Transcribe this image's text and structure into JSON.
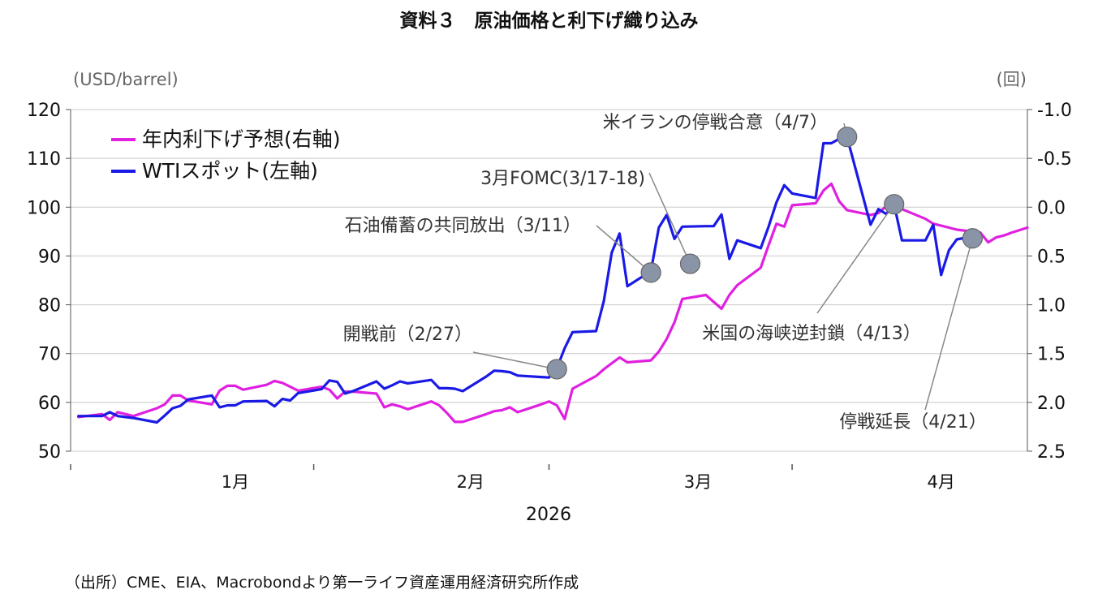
{
  "title": "資料３　原油価格と利下げ織り込み",
  "source": "（出所）CME、EIA、Macrobondより第一ライフ資産運用経済研究所作成",
  "chart_data": {
    "type": "line",
    "title": "資料３　原油価格と利下げ織り込み",
    "left_axis": {
      "unit": "(USD/barrel)",
      "ylim": [
        50,
        120
      ],
      "ticks": [
        120,
        110,
        100,
        90,
        80,
        70,
        60,
        50
      ]
    },
    "right_axis": {
      "unit": "(回)",
      "ylim": [
        -1.0,
        2.5
      ],
      "inverted": true,
      "ticks": [
        "-1.0",
        "-0.5",
        "0.0",
        "0.5",
        "1.0",
        "1.5",
        "2.0",
        "2.5"
      ]
    },
    "x_axis": {
      "xlim": [
        "2025-12-25",
        "2026-04-26"
      ],
      "year": "2026",
      "month_labels": [
        {
          "label": "1月",
          "date": "2026-01-15"
        },
        {
          "label": "2月",
          "date": "2026-02-14"
        },
        {
          "label": "3月",
          "date": "2026-03-15"
        },
        {
          "label": "4月",
          "date": "2026-04-15"
        }
      ],
      "separators": [
        "2025-12-25",
        "2026-01-25",
        "2026-02-24",
        "2026-03-27"
      ]
    },
    "grid": "horizontal",
    "legend": {
      "placement": "top-left",
      "entries": [
        {
          "name": "年内利下げ予想(右軸)",
          "color": "#e020e0"
        },
        {
          "name": "WTIスポット(左軸)",
          "color": "#1a1ae6"
        }
      ]
    },
    "series": [
      {
        "name": "年内利下げ予想(右軸)",
        "axis": "right",
        "color": "#e020e0",
        "points": [
          [
            "2025-12-26",
            2.15
          ],
          [
            "2025-12-29",
            2.12
          ],
          [
            "2025-12-30",
            2.18
          ],
          [
            "2025-12-31",
            2.1
          ],
          [
            "2026-01-02",
            2.14
          ],
          [
            "2026-01-05",
            2.06
          ],
          [
            "2026-01-06",
            2.02
          ],
          [
            "2026-01-07",
            1.93
          ],
          [
            "2026-01-08",
            1.93
          ],
          [
            "2026-01-09",
            1.98
          ],
          [
            "2026-01-12",
            2.02
          ],
          [
            "2026-01-13",
            1.88
          ],
          [
            "2026-01-14",
            1.83
          ],
          [
            "2026-01-15",
            1.83
          ],
          [
            "2026-01-16",
            1.87
          ],
          [
            "2026-01-19",
            1.82
          ],
          [
            "2026-01-20",
            1.78
          ],
          [
            "2026-01-21",
            1.8
          ],
          [
            "2026-01-22",
            1.84
          ],
          [
            "2026-01-23",
            1.88
          ],
          [
            "2026-01-26",
            1.84
          ],
          [
            "2026-01-27",
            1.87
          ],
          [
            "2026-01-28",
            1.96
          ],
          [
            "2026-01-29",
            1.89
          ],
          [
            "2026-01-30",
            1.89
          ],
          [
            "2026-02-02",
            1.91
          ],
          [
            "2026-02-03",
            2.05
          ],
          [
            "2026-02-04",
            2.02
          ],
          [
            "2026-02-05",
            2.04
          ],
          [
            "2026-02-06",
            2.07
          ],
          [
            "2026-02-09",
            1.99
          ],
          [
            "2026-02-10",
            2.03
          ],
          [
            "2026-02-11",
            2.11
          ],
          [
            "2026-02-12",
            2.2
          ],
          [
            "2026-02-13",
            2.2
          ],
          [
            "2026-02-16",
            2.12
          ],
          [
            "2026-02-17",
            2.09
          ],
          [
            "2026-02-18",
            2.08
          ],
          [
            "2026-02-19",
            2.05
          ],
          [
            "2026-02-20",
            2.1
          ],
          [
            "2026-02-23",
            2.02
          ],
          [
            "2026-02-24",
            1.99
          ],
          [
            "2026-02-25",
            2.03
          ],
          [
            "2026-02-26",
            2.17
          ],
          [
            "2026-02-27",
            1.86
          ],
          [
            "2026-03-02",
            1.73
          ],
          [
            "2026-03-03",
            1.66
          ],
          [
            "2026-03-04",
            1.6
          ],
          [
            "2026-03-05",
            1.54
          ],
          [
            "2026-03-06",
            1.59
          ],
          [
            "2026-03-09",
            1.57
          ],
          [
            "2026-03-10",
            1.48
          ],
          [
            "2026-03-11",
            1.35
          ],
          [
            "2026-03-12",
            1.18
          ],
          [
            "2026-03-13",
            0.94
          ],
          [
            "2026-03-16",
            0.9
          ],
          [
            "2026-03-17",
            0.97
          ],
          [
            "2026-03-18",
            1.04
          ],
          [
            "2026-03-19",
            0.9
          ],
          [
            "2026-03-20",
            0.8
          ],
          [
            "2026-03-23",
            0.62
          ],
          [
            "2026-03-24",
            0.39
          ],
          [
            "2026-03-25",
            0.17
          ],
          [
            "2026-03-26",
            0.2
          ],
          [
            "2026-03-27",
            -0.02
          ],
          [
            "2026-03-30",
            -0.04
          ],
          [
            "2026-03-31",
            -0.17
          ],
          [
            "2026-04-01",
            -0.24
          ],
          [
            "2026-04-02",
            -0.06
          ],
          [
            "2026-04-03",
            0.03
          ],
          [
            "2026-04-06",
            0.08
          ],
          [
            "2026-04-07",
            0.06
          ],
          [
            "2026-04-08",
            -0.01
          ],
          [
            "2026-04-09",
            -0.06
          ],
          [
            "2026-04-10",
            0.02
          ],
          [
            "2026-04-13",
            0.12
          ],
          [
            "2026-04-14",
            0.17
          ],
          [
            "2026-04-15",
            0.19
          ],
          [
            "2026-04-16",
            0.21
          ],
          [
            "2026-04-17",
            0.23
          ],
          [
            "2026-04-20",
            0.26
          ],
          [
            "2026-04-21",
            0.36
          ],
          [
            "2026-04-22",
            0.31
          ],
          [
            "2026-04-23",
            0.29
          ],
          [
            "2026-04-24",
            0.26
          ],
          [
            "2026-04-26",
            0.21
          ]
        ]
      },
      {
        "name": "WTIスポット(左軸)",
        "axis": "left",
        "color": "#1a1ae6",
        "points": [
          [
            "2025-12-26",
            57.2
          ],
          [
            "2025-12-29",
            57.2
          ],
          [
            "2025-12-30",
            58.0
          ],
          [
            "2025-12-31",
            57.2
          ],
          [
            "2026-01-02",
            56.8
          ],
          [
            "2026-01-05",
            55.9
          ],
          [
            "2026-01-06",
            57.3
          ],
          [
            "2026-01-07",
            58.8
          ],
          [
            "2026-01-08",
            59.3
          ],
          [
            "2026-01-09",
            60.6
          ],
          [
            "2026-01-12",
            61.4
          ],
          [
            "2026-01-13",
            59.0
          ],
          [
            "2026-01-14",
            59.4
          ],
          [
            "2026-01-15",
            59.4
          ],
          [
            "2026-01-16",
            60.2
          ],
          [
            "2026-01-19",
            60.3
          ],
          [
            "2026-01-20",
            59.2
          ],
          [
            "2026-01-21",
            60.7
          ],
          [
            "2026-01-22",
            60.4
          ],
          [
            "2026-01-23",
            61.9
          ],
          [
            "2026-01-26",
            62.7
          ],
          [
            "2026-01-27",
            64.5
          ],
          [
            "2026-01-28",
            64.2
          ],
          [
            "2026-01-29",
            61.8
          ],
          [
            "2026-01-30",
            62.3
          ],
          [
            "2026-02-02",
            64.3
          ],
          [
            "2026-02-03",
            62.8
          ],
          [
            "2026-02-04",
            63.5
          ],
          [
            "2026-02-05",
            64.3
          ],
          [
            "2026-02-06",
            63.9
          ],
          [
            "2026-02-09",
            64.6
          ],
          [
            "2026-02-10",
            62.9
          ],
          [
            "2026-02-11",
            62.9
          ],
          [
            "2026-02-12",
            62.8
          ],
          [
            "2026-02-13",
            62.3
          ],
          [
            "2026-02-16",
            65.3
          ],
          [
            "2026-02-17",
            66.5
          ],
          [
            "2026-02-18",
            66.4
          ],
          [
            "2026-02-19",
            66.2
          ],
          [
            "2026-02-20",
            65.5
          ],
          [
            "2026-02-23",
            65.2
          ],
          [
            "2026-02-24",
            65.1
          ],
          [
            "2026-02-25",
            67.0
          ],
          [
            "2026-02-26",
            71.1
          ],
          [
            "2026-02-27",
            74.4
          ],
          [
            "2026-03-02",
            74.6
          ],
          [
            "2026-03-03",
            80.8
          ],
          [
            "2026-03-04",
            90.7
          ],
          [
            "2026-03-05",
            94.6
          ],
          [
            "2026-03-06",
            83.8
          ],
          [
            "2026-03-09",
            86.9
          ],
          [
            "2026-03-10",
            95.8
          ],
          [
            "2026-03-11",
            98.4
          ],
          [
            "2026-03-12",
            93.5
          ],
          [
            "2026-03-13",
            96.0
          ],
          [
            "2026-03-16",
            96.1
          ],
          [
            "2026-03-17",
            96.1
          ],
          [
            "2026-03-18",
            98.5
          ],
          [
            "2026-03-19",
            89.4
          ],
          [
            "2026-03-20",
            93.2
          ],
          [
            "2026-03-23",
            91.6
          ],
          [
            "2026-03-24",
            96.0
          ],
          [
            "2026-03-25",
            101.0
          ],
          [
            "2026-03-26",
            104.5
          ],
          [
            "2026-03-27",
            102.8
          ],
          [
            "2026-03-30",
            101.9
          ],
          [
            "2026-03-31",
            113.1
          ],
          [
            "2026-04-01",
            113.1
          ],
          [
            "2026-04-02",
            114.0
          ],
          [
            "2026-04-03",
            114.4
          ],
          [
            "2026-04-06",
            96.4
          ],
          [
            "2026-04-07",
            99.6
          ],
          [
            "2026-04-08",
            98.6
          ],
          [
            "2026-04-09",
            100.6
          ],
          [
            "2026-04-10",
            93.2
          ],
          [
            "2026-04-13",
            93.2
          ],
          [
            "2026-04-14",
            96.4
          ],
          [
            "2026-04-15",
            86.1
          ],
          [
            "2026-04-16",
            91.2
          ],
          [
            "2026-04-17",
            93.4
          ],
          [
            "2026-04-20",
            94.3
          ]
        ]
      }
    ],
    "annotations": [
      {
        "text": "開戦前（2/27）",
        "point": [
          "2026-02-25",
          66.8
        ]
      },
      {
        "text": "石油備蓄の共同放出（3/11）",
        "point": [
          "2026-03-09",
          86.6
        ]
      },
      {
        "text": "3月FOMC(3/17-18)",
        "point": [
          "2026-03-14",
          88.4
        ]
      },
      {
        "text": "米イランの停戦合意（4/7）",
        "point": [
          "2026-04-03",
          114.4
        ]
      },
      {
        "text": "米国の海峡逆封鎖（4/13）",
        "point": [
          "2026-04-09",
          100.6
        ]
      },
      {
        "text": "停戦延長（4/21）",
        "point": [
          "2026-04-19",
          93.6
        ]
      }
    ]
  }
}
